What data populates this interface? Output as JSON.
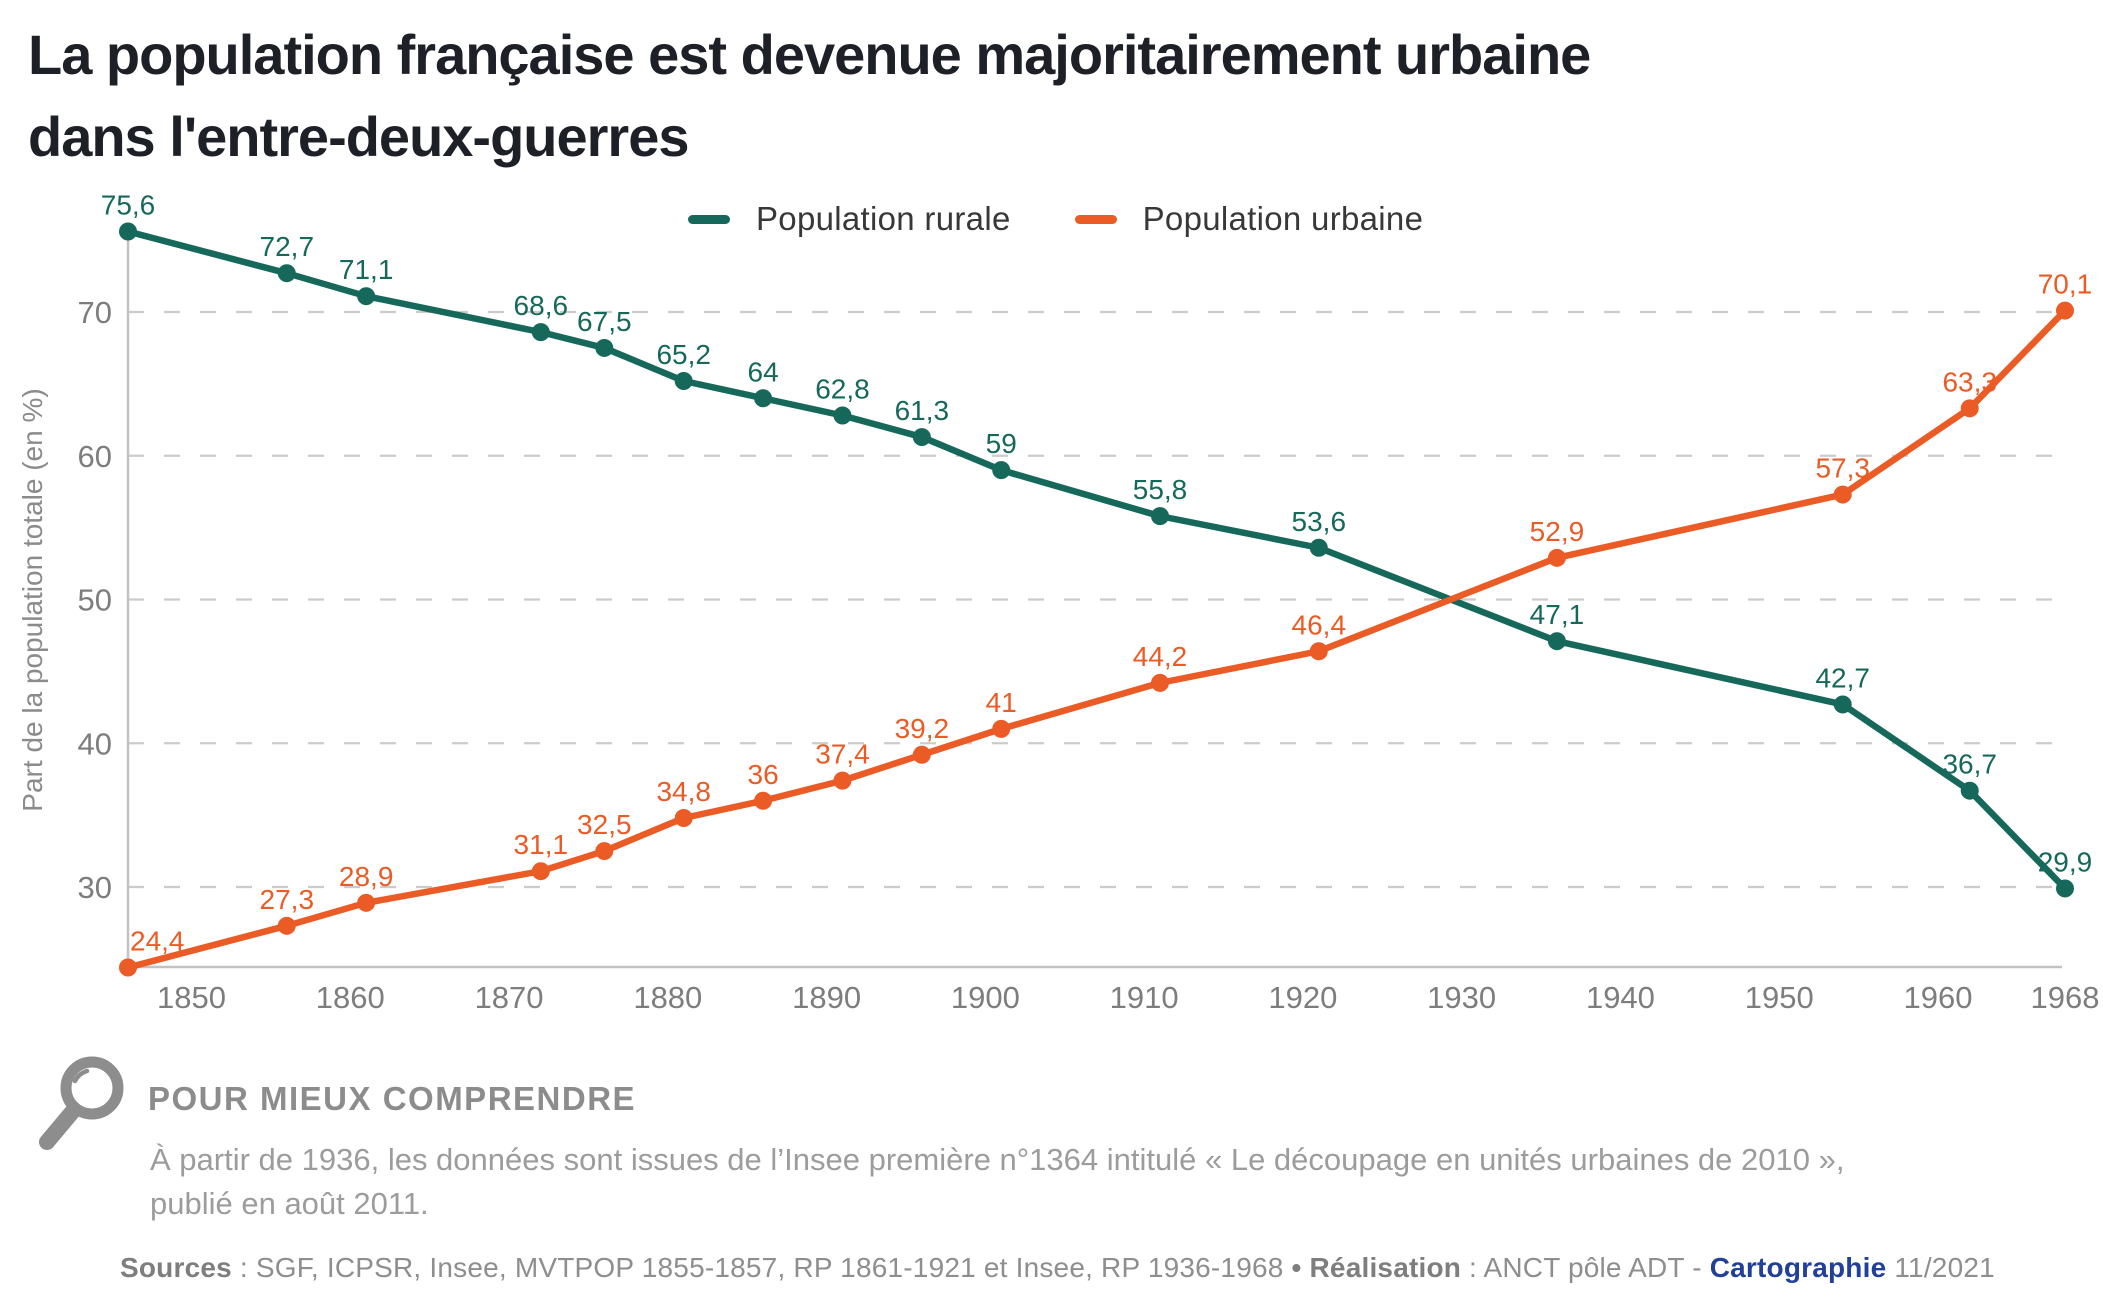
{
  "title_line1": "La population française est devenue majoritairement urbaine",
  "title_line2": "dans l'entre-deux-guerres",
  "legend": {
    "rural_label": "Population rurale",
    "urban_label": "Population urbaine"
  },
  "note": {
    "heading": "POUR MIEUX COMPRENDRE",
    "body_line1": "À partir de 1936, les données sont issues de l’Insee première n°1364 intitulé « Le découpage en unités urbaines de 2010 »,",
    "body_line2": "publié en août 2011."
  },
  "footer": {
    "sources_label": "Sources",
    "sources_text": " : SGF, ICPSR, Insee, MVTPOP 1855-1857, RP 1861-1921 et Insee, RP 1936-1968 ",
    "realisation_label": "• Réalisation",
    "realisation_text": " : ANCT pôle ADT -  ",
    "cartographie": "Cartographie",
    "date": " 11/2021"
  },
  "colors": {
    "rural": "#16695a",
    "urban": "#eb5b25",
    "navy": "#21409a",
    "grid": "#cbcbcb",
    "axis": "#c2c2c2",
    "tick_text": "#7d7d7d",
    "ylabel_text": "#8b8b8b"
  },
  "chart_data": {
    "type": "line",
    "ylabel": "Part de la population totale (en %)",
    "grid": "horizontal-dashed",
    "legend_position": "top-center",
    "ylim": [
      24.4,
      76.5
    ],
    "x": [
      1846,
      1856,
      1861,
      1872,
      1876,
      1881,
      1886,
      1891,
      1896,
      1901,
      1911,
      1921,
      1936,
      1954,
      1962,
      1968
    ],
    "x_ticks": [
      {
        "year": 1850,
        "label": "1850"
      },
      {
        "year": 1860,
        "label": "1860"
      },
      {
        "year": 1870,
        "label": "1870"
      },
      {
        "year": 1880,
        "label": "1880"
      },
      {
        "year": 1890,
        "label": "1890"
      },
      {
        "year": 1900,
        "label": "1900"
      },
      {
        "year": 1910,
        "label": "1910"
      },
      {
        "year": 1920,
        "label": "1920"
      },
      {
        "year": 1930,
        "label": "1930"
      },
      {
        "year": 1940,
        "label": "1940"
      },
      {
        "year": 1950,
        "label": "1950"
      },
      {
        "year": 1960,
        "label": "1960"
      },
      {
        "year": 1968,
        "label": "1968"
      }
    ],
    "y_ticks": [
      {
        "value": 30,
        "label": "30"
      },
      {
        "value": 40,
        "label": "40"
      },
      {
        "value": 50,
        "label": "50"
      },
      {
        "value": 60,
        "label": "60"
      },
      {
        "value": 70,
        "label": "70"
      }
    ],
    "series": [
      {
        "name": "Population rurale",
        "color": "#16695a",
        "values": [
          75.6,
          72.7,
          71.1,
          68.6,
          67.5,
          65.2,
          64,
          62.8,
          61.3,
          59,
          55.8,
          53.6,
          47.1,
          42.7,
          36.7,
          29.9
        ],
        "labels": [
          "75,6",
          "72,7",
          "71,1",
          "68,6",
          "67,5",
          "65,2",
          "64",
          "62,8",
          "61,3",
          "59",
          "55,8",
          "53,6",
          "47,1",
          "42,7",
          "36,7",
          "29,9"
        ]
      },
      {
        "name": "Population urbaine",
        "color": "#eb5b25",
        "values": [
          24.4,
          27.3,
          28.9,
          31.1,
          32.5,
          34.8,
          36,
          37.4,
          39.2,
          41,
          44.2,
          46.4,
          52.9,
          57.3,
          63.3,
          70.1
        ],
        "labels": [
          "24,4",
          "27,3",
          "28,9",
          "31,1",
          "32,5",
          "34,8",
          "36",
          "37,4",
          "39,2",
          "41",
          "44,2",
          "46,4",
          "52,9",
          "57,3",
          "63,3",
          "70,1"
        ]
      }
    ]
  }
}
